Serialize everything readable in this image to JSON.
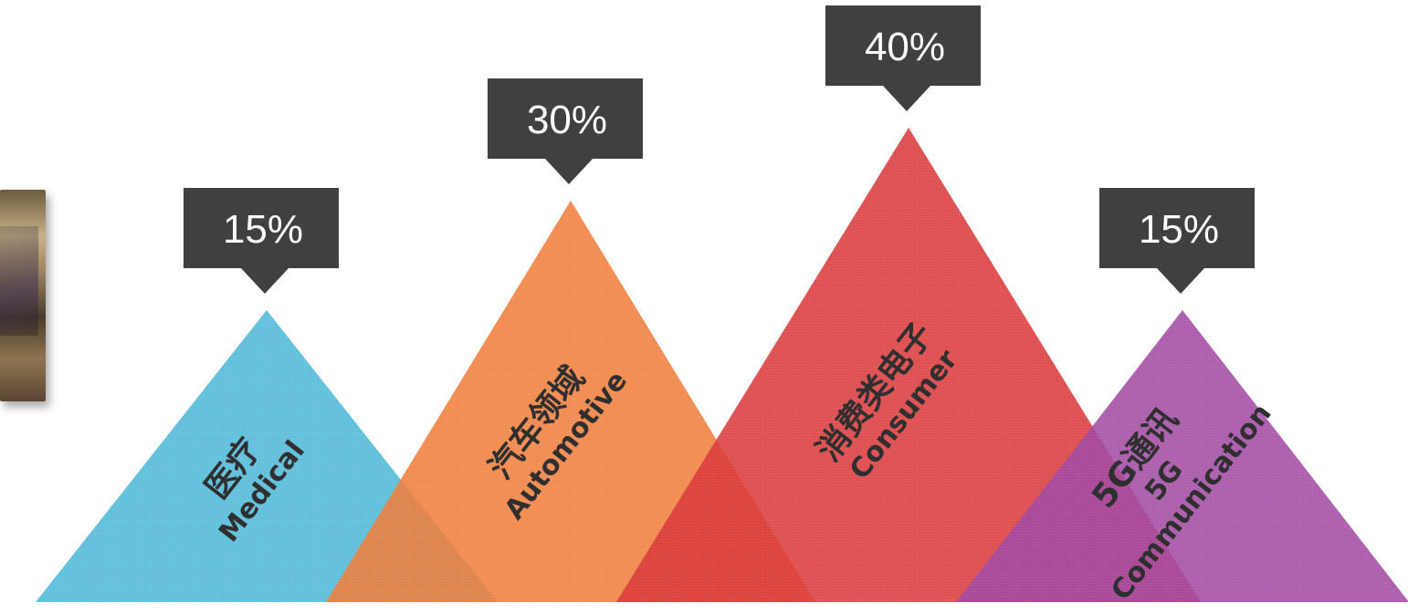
{
  "chart_data": {
    "type": "bar",
    "categories": [
      "医疗\nMedical",
      "汽车领域\nAutomotive",
      "消费类电子\nConsumer",
      "5G通讯\n5G\nCommunication"
    ],
    "labels": [
      {
        "cn": "医疗",
        "en": [
          "Medical"
        ]
      },
      {
        "cn": "汽车领域",
        "en": [
          "Automotive"
        ]
      },
      {
        "cn": "消费类电子",
        "en": [
          "Consumer"
        ]
      },
      {
        "cn": "5G通讯",
        "en": [
          "5G",
          "Communication"
        ]
      }
    ],
    "values": [
      15,
      30,
      40,
      15
    ],
    "value_labels": [
      "15%",
      "30%",
      "40%",
      "15%"
    ],
    "unit": "%",
    "colors": [
      "#4fb8d6",
      "#f07d3c",
      "#d93a3b",
      "#a24aa3"
    ],
    "callout_color": "#404040",
    "title": "",
    "xlabel": "",
    "ylabel": ""
  }
}
